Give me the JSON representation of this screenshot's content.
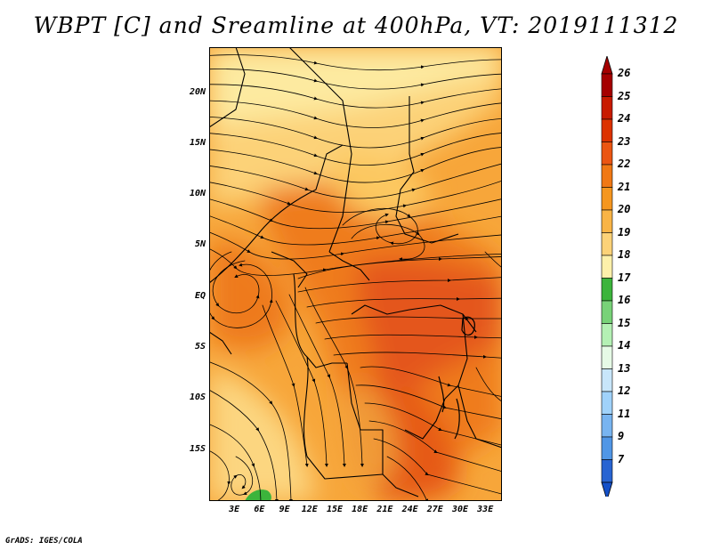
{
  "title": "WBPT [C] and Sreamline at 400hPa, VT: 2019111312",
  "credit": "GrADS: IGES/COLA",
  "map": {
    "lon_range": [
      0,
      35
    ],
    "lat_range": [
      -20,
      24.5
    ],
    "lat_ticks": [
      {
        "value": 20,
        "label": "20N"
      },
      {
        "value": 15,
        "label": "15N"
      },
      {
        "value": 10,
        "label": "10N"
      },
      {
        "value": 5,
        "label": "5N"
      },
      {
        "value": 0,
        "label": "EQ"
      },
      {
        "value": -5,
        "label": "5S"
      },
      {
        "value": -10,
        "label": "10S"
      },
      {
        "value": -15,
        "label": "15S"
      }
    ],
    "lon_ticks": [
      {
        "value": 3,
        "label": "3E"
      },
      {
        "value": 6,
        "label": "6E"
      },
      {
        "value": 9,
        "label": "9E"
      },
      {
        "value": 12,
        "label": "12E"
      },
      {
        "value": 15,
        "label": "15E"
      },
      {
        "value": 18,
        "label": "18E"
      },
      {
        "value": 21,
        "label": "21E"
      },
      {
        "value": 24,
        "label": "24E"
      },
      {
        "value": 27,
        "label": "27E"
      },
      {
        "value": 30,
        "label": "30E"
      },
      {
        "value": 33,
        "label": "33E"
      }
    ]
  },
  "colorbar": {
    "levels": [
      {
        "label": "26",
        "color": "#a50000"
      },
      {
        "label": "25",
        "color": "#c81a00"
      },
      {
        "label": "24",
        "color": "#dc3200"
      },
      {
        "label": "23",
        "color": "#eb5512"
      },
      {
        "label": "22",
        "color": "#f07814"
      },
      {
        "label": "21",
        "color": "#f5961e"
      },
      {
        "label": "20",
        "color": "#f9b446"
      },
      {
        "label": "19",
        "color": "#fcd278"
      },
      {
        "label": "18",
        "color": "#fdf0aa"
      },
      {
        "label": "17",
        "color": "#3cb43c"
      },
      {
        "label": "16",
        "color": "#78d278"
      },
      {
        "label": "15",
        "color": "#b4f0b4"
      },
      {
        "label": "14",
        "color": "#e6fae6"
      },
      {
        "label": "13",
        "color": "#c8e6fa"
      },
      {
        "label": "12",
        "color": "#a0d2fa"
      },
      {
        "label": "11",
        "color": "#78b4f0"
      },
      {
        "label": "9",
        "color": "#5096e6"
      },
      {
        "label": "7",
        "color": "#2864d2"
      }
    ],
    "under_color": "#1450c8"
  }
}
